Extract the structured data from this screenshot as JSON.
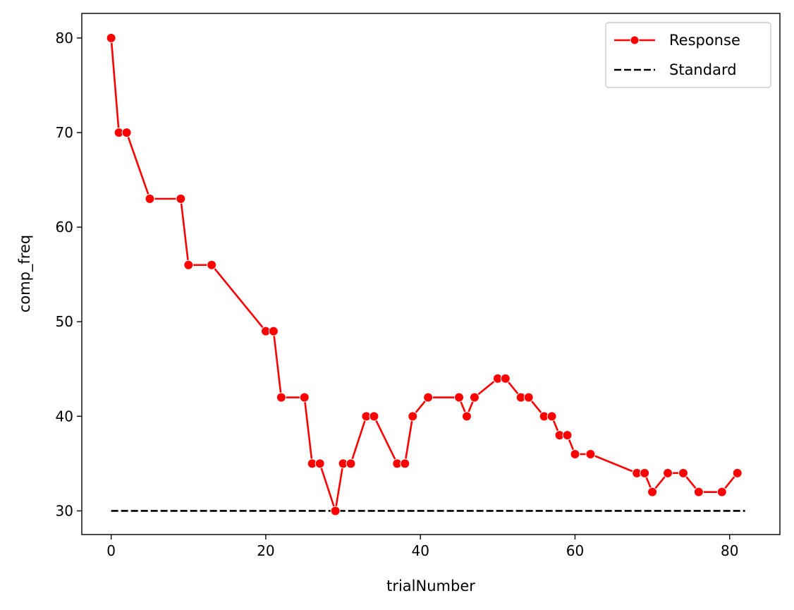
{
  "chart_data": {
    "type": "line",
    "xlabel": "trialNumber",
    "ylabel": "comp_freq",
    "xlim": [
      -3.8,
      86.5
    ],
    "ylim": [
      27.5,
      82.6
    ],
    "xticks": [
      0,
      20,
      40,
      60,
      80
    ],
    "yticks": [
      30,
      40,
      50,
      60,
      70,
      80
    ],
    "grid": false,
    "legend_position": "top-right",
    "series": [
      {
        "name": "Response",
        "color": "#ff0000",
        "style": "solid",
        "marker": "circle",
        "x": [
          0,
          1,
          2,
          5,
          9,
          10,
          13,
          20,
          21,
          22,
          25,
          26,
          27,
          29,
          30,
          31,
          33,
          34,
          37,
          38,
          39,
          41,
          45,
          46,
          47,
          50,
          51,
          53,
          54,
          56,
          57,
          58,
          59,
          60,
          62,
          68,
          69,
          70,
          72,
          74,
          76,
          79,
          81
        ],
        "y": [
          80,
          70,
          70,
          63,
          63,
          56,
          56,
          49,
          49,
          42,
          42,
          35,
          35,
          30,
          35,
          35,
          40,
          40,
          35,
          35,
          40,
          42,
          42,
          40,
          42,
          44,
          44,
          42,
          42,
          40,
          40,
          38,
          38,
          36,
          36,
          34,
          34,
          32,
          34,
          34,
          32,
          32,
          34
        ]
      },
      {
        "name": "Standard",
        "color": "#000000",
        "style": "dashed",
        "marker": "none",
        "x": [
          0,
          82
        ],
        "y": [
          30,
          30
        ]
      }
    ]
  }
}
